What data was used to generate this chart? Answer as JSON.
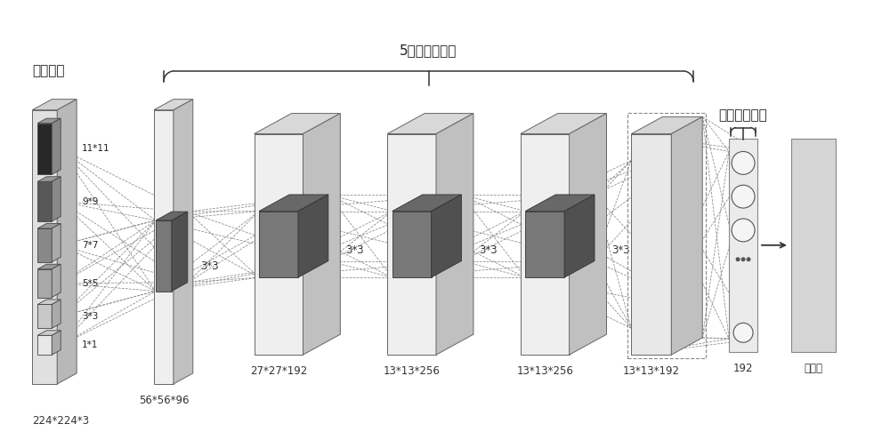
{
  "bg_color": "#ffffff",
  "label_input": "输入图像",
  "label_conv": "5个卷积池化层",
  "label_gap": "全局平均池化",
  "label_bottom": "224*224*3",
  "label_classify": "分类数",
  "kernel_labels": [
    "1*1",
    "3*3",
    "5*5",
    "7*7",
    "9*9",
    "11*11"
  ],
  "layer_labels": [
    "56*56*96",
    "27*27*192",
    "13*13*256",
    "13*13*256",
    "13*13*192",
    "192"
  ],
  "conv_labels": [
    "3*3",
    "3*3",
    "3*3",
    "3*3"
  ],
  "font_size_label": 11,
  "font_size_small": 8.5,
  "font_size_tiny": 7.5,
  "input_strip_colors": [
    "#e8e8e8",
    "#c8c8c8",
    "#a8a8a8",
    "#888888",
    "#585858",
    "#282828"
  ]
}
